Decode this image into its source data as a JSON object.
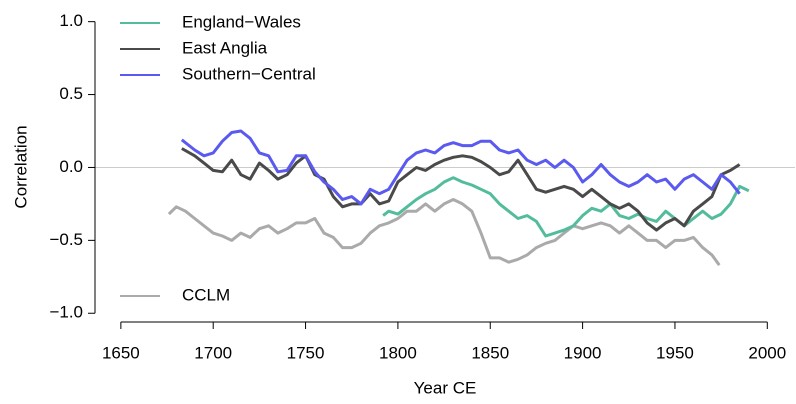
{
  "chart_data": {
    "type": "line",
    "xlabel": "Year CE",
    "ylabel": "Correlation",
    "xlim": [
      1636,
      2015
    ],
    "ylim": [
      -1.06,
      1.08
    ],
    "xticks": [
      1650,
      1700,
      1750,
      1800,
      1850,
      1900,
      1950,
      2000
    ],
    "yticks": [
      {
        "value": 1.0,
        "label": "1.0"
      },
      {
        "value": 0.5,
        "label": "0.5"
      },
      {
        "value": 0.0,
        "label": "0.0"
      },
      {
        "value": -0.5,
        "label": "−0.5"
      },
      {
        "value": -1.0,
        "label": "−1.0"
      }
    ],
    "reference_line": 0,
    "legend": "upper left",
    "series": [
      {
        "name": "England−Wales",
        "color": "#52bc9c",
        "x": [
          1792,
          1795,
          1800,
          1805,
          1810,
          1815,
          1820,
          1825,
          1830,
          1835,
          1840,
          1845,
          1850,
          1855,
          1860,
          1865,
          1870,
          1875,
          1880,
          1885,
          1890,
          1895,
          1900,
          1905,
          1910,
          1915,
          1920,
          1925,
          1930,
          1935,
          1940,
          1945,
          1950,
          1955,
          1960,
          1965,
          1970,
          1975,
          1980,
          1985,
          1990
        ],
        "values": [
          -0.33,
          -0.3,
          -0.32,
          -0.27,
          -0.22,
          -0.18,
          -0.15,
          -0.1,
          -0.07,
          -0.1,
          -0.12,
          -0.15,
          -0.18,
          -0.25,
          -0.3,
          -0.35,
          -0.33,
          -0.37,
          -0.47,
          -0.45,
          -0.43,
          -0.4,
          -0.33,
          -0.28,
          -0.3,
          -0.25,
          -0.33,
          -0.35,
          -0.32,
          -0.35,
          -0.37,
          -0.3,
          -0.35,
          -0.4,
          -0.35,
          -0.3,
          -0.35,
          -0.32,
          -0.25,
          -0.13,
          -0.16
        ]
      },
      {
        "name": "East Anglia",
        "color": "#4a4a4a",
        "x": [
          1683,
          1690,
          1695,
          1700,
          1705,
          1710,
          1715,
          1720,
          1725,
          1730,
          1735,
          1740,
          1745,
          1750,
          1755,
          1760,
          1765,
          1770,
          1775,
          1780,
          1785,
          1790,
          1795,
          1800,
          1805,
          1810,
          1815,
          1820,
          1825,
          1830,
          1835,
          1840,
          1845,
          1850,
          1855,
          1860,
          1865,
          1870,
          1875,
          1880,
          1885,
          1890,
          1895,
          1900,
          1905,
          1910,
          1915,
          1920,
          1925,
          1930,
          1935,
          1940,
          1945,
          1950,
          1955,
          1960,
          1965,
          1970,
          1975,
          1980,
          1985
        ],
        "values": [
          0.13,
          0.08,
          0.03,
          -0.02,
          -0.03,
          0.05,
          -0.05,
          -0.08,
          0.03,
          -0.02,
          -0.08,
          -0.05,
          0.03,
          0.08,
          -0.05,
          -0.08,
          -0.2,
          -0.27,
          -0.25,
          -0.25,
          -0.18,
          -0.25,
          -0.23,
          -0.1,
          -0.05,
          0.0,
          -0.02,
          0.02,
          0.05,
          0.07,
          0.08,
          0.07,
          0.04,
          0.0,
          -0.05,
          -0.03,
          0.05,
          -0.05,
          -0.15,
          -0.17,
          -0.15,
          -0.13,
          -0.15,
          -0.2,
          -0.15,
          -0.2,
          -0.25,
          -0.28,
          -0.25,
          -0.3,
          -0.38,
          -0.43,
          -0.38,
          -0.35,
          -0.4,
          -0.3,
          -0.25,
          -0.2,
          -0.05,
          -0.02,
          0.02
        ]
      },
      {
        "name": "Southern−Central",
        "color": "#5a5af0",
        "x": [
          1683,
          1690,
          1695,
          1700,
          1705,
          1710,
          1715,
          1720,
          1725,
          1730,
          1735,
          1740,
          1745,
          1750,
          1755,
          1760,
          1765,
          1770,
          1775,
          1780,
          1785,
          1790,
          1795,
          1800,
          1805,
          1810,
          1815,
          1820,
          1825,
          1830,
          1835,
          1840,
          1845,
          1850,
          1855,
          1860,
          1865,
          1870,
          1875,
          1880,
          1885,
          1890,
          1895,
          1900,
          1905,
          1910,
          1915,
          1920,
          1925,
          1930,
          1935,
          1940,
          1945,
          1950,
          1955,
          1960,
          1965,
          1970,
          1975,
          1980,
          1985
        ],
        "values": [
          0.19,
          0.12,
          0.08,
          0.1,
          0.18,
          0.24,
          0.25,
          0.2,
          0.1,
          0.08,
          -0.03,
          -0.02,
          0.08,
          0.08,
          -0.03,
          -0.1,
          -0.15,
          -0.22,
          -0.2,
          -0.25,
          -0.15,
          -0.18,
          -0.15,
          -0.05,
          0.05,
          0.1,
          0.12,
          0.1,
          0.15,
          0.17,
          0.15,
          0.15,
          0.18,
          0.18,
          0.12,
          0.1,
          0.12,
          0.05,
          0.02,
          0.05,
          0.0,
          0.05,
          0.0,
          -0.1,
          -0.05,
          0.02,
          -0.05,
          -0.1,
          -0.13,
          -0.1,
          -0.05,
          -0.1,
          -0.08,
          -0.15,
          -0.08,
          -0.05,
          -0.1,
          -0.15,
          -0.05,
          -0.1,
          -0.18
        ]
      },
      {
        "name": "CCLM",
        "color": "#aaaaaa",
        "x": [
          1676,
          1680,
          1685,
          1690,
          1695,
          1700,
          1705,
          1710,
          1715,
          1720,
          1725,
          1730,
          1735,
          1740,
          1745,
          1750,
          1755,
          1760,
          1765,
          1770,
          1775,
          1780,
          1785,
          1790,
          1795,
          1800,
          1805,
          1810,
          1815,
          1820,
          1825,
          1830,
          1835,
          1840,
          1845,
          1850,
          1855,
          1860,
          1865,
          1870,
          1875,
          1880,
          1885,
          1890,
          1895,
          1900,
          1905,
          1910,
          1915,
          1920,
          1925,
          1930,
          1935,
          1940,
          1945,
          1950,
          1955,
          1960,
          1965,
          1970,
          1974
        ],
        "values": [
          -0.32,
          -0.27,
          -0.3,
          -0.35,
          -0.4,
          -0.45,
          -0.47,
          -0.5,
          -0.45,
          -0.48,
          -0.42,
          -0.4,
          -0.45,
          -0.42,
          -0.38,
          -0.38,
          -0.35,
          -0.45,
          -0.48,
          -0.55,
          -0.55,
          -0.52,
          -0.45,
          -0.4,
          -0.38,
          -0.35,
          -0.3,
          -0.3,
          -0.25,
          -0.3,
          -0.25,
          -0.22,
          -0.25,
          -0.3,
          -0.45,
          -0.62,
          -0.62,
          -0.65,
          -0.63,
          -0.6,
          -0.55,
          -0.52,
          -0.5,
          -0.45,
          -0.4,
          -0.42,
          -0.4,
          -0.38,
          -0.4,
          -0.45,
          -0.4,
          -0.45,
          -0.5,
          -0.5,
          -0.55,
          -0.5,
          -0.5,
          -0.48,
          -0.55,
          -0.6,
          -0.67
        ]
      }
    ]
  }
}
